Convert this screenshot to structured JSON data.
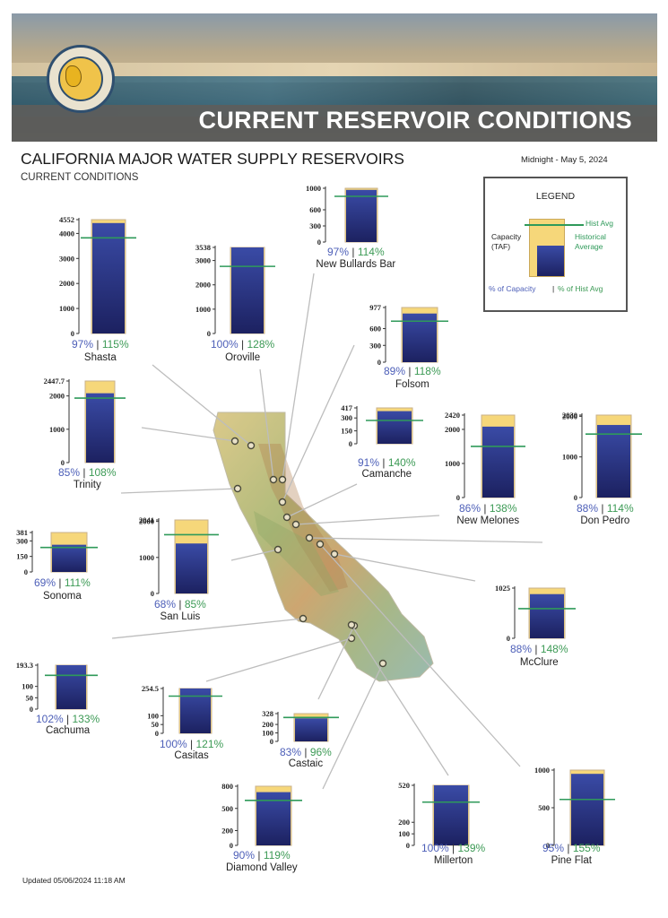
{
  "banner": {
    "title": "CURRENT RESERVOIR CONDITIONS"
  },
  "page": {
    "title": "CALIFORNIA MAJOR WATER SUPPLY RESERVOIRS",
    "subtitle": "CURRENT CONDITIONS",
    "date": "Midnight - May 5, 2024",
    "updated": "Updated 05/06/2024 11:18 AM"
  },
  "legend": {
    "title": "LEGEND",
    "capacity_label": "Capacity (TAF)",
    "hist_avg_label": "Hist Avg",
    "historical_average_label": "Historical Average",
    "pct_capacity_label": "% of Capacity",
    "separator": "|",
    "pct_hist_label": "% of Hist Avg"
  },
  "colors": {
    "capacity_fill": "#f6d77a",
    "storage_top": "#3a4ba6",
    "storage_bottom": "#1c2160",
    "hist_avg_line": "#2f9a5a",
    "pct_capacity_text": "#4d5fb8",
    "pct_hist_text": "#3c9a55"
  },
  "chart_data": [
    {
      "type": "bar",
      "name": "Shasta",
      "capacity": 4552,
      "ticks": [
        "4552",
        "4000",
        "3000",
        "2000",
        "1000",
        "0"
      ],
      "pct_capacity": "97%",
      "pct_hist": "115%",
      "storage_pct": 97,
      "hist_pct_of_capacity": 84
    },
    {
      "type": "bar",
      "name": "Oroville",
      "capacity": 3538,
      "ticks": [
        "3538",
        "3000",
        "2000",
        "1000",
        "0"
      ],
      "pct_capacity": "100%",
      "pct_hist": "128%",
      "storage_pct": 100,
      "hist_pct_of_capacity": 78
    },
    {
      "type": "bar",
      "name": "New Bullards Bar",
      "capacity": 1000,
      "ticks": [
        "1000",
        "600",
        "300",
        "0"
      ],
      "pct_capacity": "97%",
      "pct_hist": "114%",
      "storage_pct": 97,
      "hist_pct_of_capacity": 85
    },
    {
      "type": "bar",
      "name": "Folsom",
      "capacity": 977,
      "ticks": [
        "977",
        "600",
        "300",
        "0"
      ],
      "pct_capacity": "89%",
      "pct_hist": "118%",
      "storage_pct": 89,
      "hist_pct_of_capacity": 75
    },
    {
      "type": "bar",
      "name": "Trinity",
      "capacity": 2447.7,
      "ticks": [
        "2447.7",
        "2000",
        "1000",
        "0"
      ],
      "pct_capacity": "85%",
      "pct_hist": "108%",
      "storage_pct": 85,
      "hist_pct_of_capacity": 79
    },
    {
      "type": "bar",
      "name": "Camanche",
      "capacity": 417,
      "ticks": [
        "417",
        "300",
        "150",
        "0"
      ],
      "pct_capacity": "91%",
      "pct_hist": "140%",
      "storage_pct": 91,
      "hist_pct_of_capacity": 65
    },
    {
      "type": "bar",
      "name": "New Melones",
      "capacity": 2420,
      "ticks": [
        "2420",
        "2000",
        "1000",
        "0"
      ],
      "pct_capacity": "86%",
      "pct_hist": "138%",
      "storage_pct": 86,
      "hist_pct_of_capacity": 62
    },
    {
      "type": "bar",
      "name": "Don Pedro",
      "capacity": 2030,
      "ticks": [
        "2030",
        "2000",
        "1000",
        "0"
      ],
      "pct_capacity": "88%",
      "pct_hist": "114%",
      "storage_pct": 88,
      "hist_pct_of_capacity": 77
    },
    {
      "type": "bar",
      "name": "Sonoma",
      "capacity": 381,
      "ticks": [
        "381",
        "300",
        "150",
        "0"
      ],
      "pct_capacity": "69%",
      "pct_hist": "111%",
      "storage_pct": 69,
      "hist_pct_of_capacity": 62
    },
    {
      "type": "bar",
      "name": "San Luis",
      "capacity": 2041,
      "ticks": [
        "2041",
        "2000",
        "1000",
        "0"
      ],
      "pct_capacity": "68%",
      "pct_hist": "85%",
      "storage_pct": 68,
      "hist_pct_of_capacity": 80
    },
    {
      "type": "bar",
      "name": "McClure",
      "capacity": 1025,
      "ticks": [
        "1025",
        "0"
      ],
      "pct_capacity": "88%",
      "pct_hist": "148%",
      "storage_pct": 88,
      "hist_pct_of_capacity": 59
    },
    {
      "type": "bar",
      "name": "Cachuma",
      "capacity": 193.3,
      "ticks": [
        "193.3",
        "100",
        "50",
        "0"
      ],
      "pct_capacity": "102%",
      "pct_hist": "133%",
      "storage_pct": 100,
      "hist_pct_of_capacity": 77
    },
    {
      "type": "bar",
      "name": "Casitas",
      "capacity": 254.5,
      "ticks": [
        "254.5",
        "100",
        "50",
        "0"
      ],
      "pct_capacity": "100%",
      "pct_hist": "121%",
      "storage_pct": 100,
      "hist_pct_of_capacity": 83
    },
    {
      "type": "bar",
      "name": "Castaic",
      "capacity": 328,
      "ticks": [
        "328",
        "200",
        "100",
        "0"
      ],
      "pct_capacity": "83%",
      "pct_hist": "96%",
      "storage_pct": 83,
      "hist_pct_of_capacity": 86
    },
    {
      "type": "bar",
      "name": "Diamond Valley",
      "capacity": 800,
      "ticks": [
        "800",
        "500",
        "200",
        "0"
      ],
      "pct_capacity": "90%",
      "pct_hist": "119%",
      "storage_pct": 90,
      "hist_pct_of_capacity": 76
    },
    {
      "type": "bar",
      "name": "Millerton",
      "capacity": 520,
      "ticks": [
        "520",
        "200",
        "100",
        "0"
      ],
      "pct_capacity": "100%",
      "pct_hist": "139%",
      "storage_pct": 100,
      "hist_pct_of_capacity": 72
    },
    {
      "type": "bar",
      "name": "Pine Flat",
      "capacity": 1000,
      "ticks": [
        "1000",
        "500",
        "0"
      ],
      "pct_capacity": "95%",
      "pct_hist": "155%",
      "storage_pct": 95,
      "hist_pct_of_capacity": 61
    }
  ]
}
